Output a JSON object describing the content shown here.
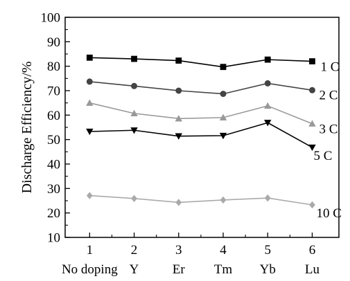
{
  "chart_data": {
    "type": "line",
    "ylabel": "Discharge Efficiency/%",
    "xlabel": "",
    "ylim": [
      10,
      100
    ],
    "yticks": [
      10,
      20,
      30,
      40,
      50,
      60,
      70,
      80,
      90,
      100
    ],
    "x": [
      1,
      2,
      3,
      4,
      5,
      6
    ],
    "x_tick_labels": [
      "1",
      "2",
      "3",
      "4",
      "5",
      "6"
    ],
    "categories": [
      "No doping",
      "Y",
      "Er",
      "Tm",
      "Yb",
      "Lu"
    ],
    "grid": false,
    "legend": "none",
    "series": [
      {
        "name": "1 C",
        "values": [
          83.5,
          83.0,
          82.3,
          79.7,
          82.7,
          82.0
        ],
        "color": "#000000",
        "marker": "square"
      },
      {
        "name": "2 C",
        "values": [
          73.7,
          71.9,
          70.0,
          68.7,
          73.0,
          70.2
        ],
        "color": "#444444",
        "marker": "circle"
      },
      {
        "name": "3 C",
        "values": [
          65.0,
          60.7,
          58.6,
          59.0,
          63.8,
          56.5
        ],
        "color": "#999999",
        "marker": "triangle-up"
      },
      {
        "name": "5 C",
        "values": [
          53.3,
          53.8,
          51.4,
          51.6,
          56.9,
          46.8
        ],
        "color": "#000000",
        "marker": "triangle-down"
      },
      {
        "name": "10 C",
        "values": [
          27.1,
          25.9,
          24.3,
          25.3,
          26.1,
          23.3
        ],
        "color": "#aaaaaa",
        "marker": "diamond"
      }
    ]
  }
}
